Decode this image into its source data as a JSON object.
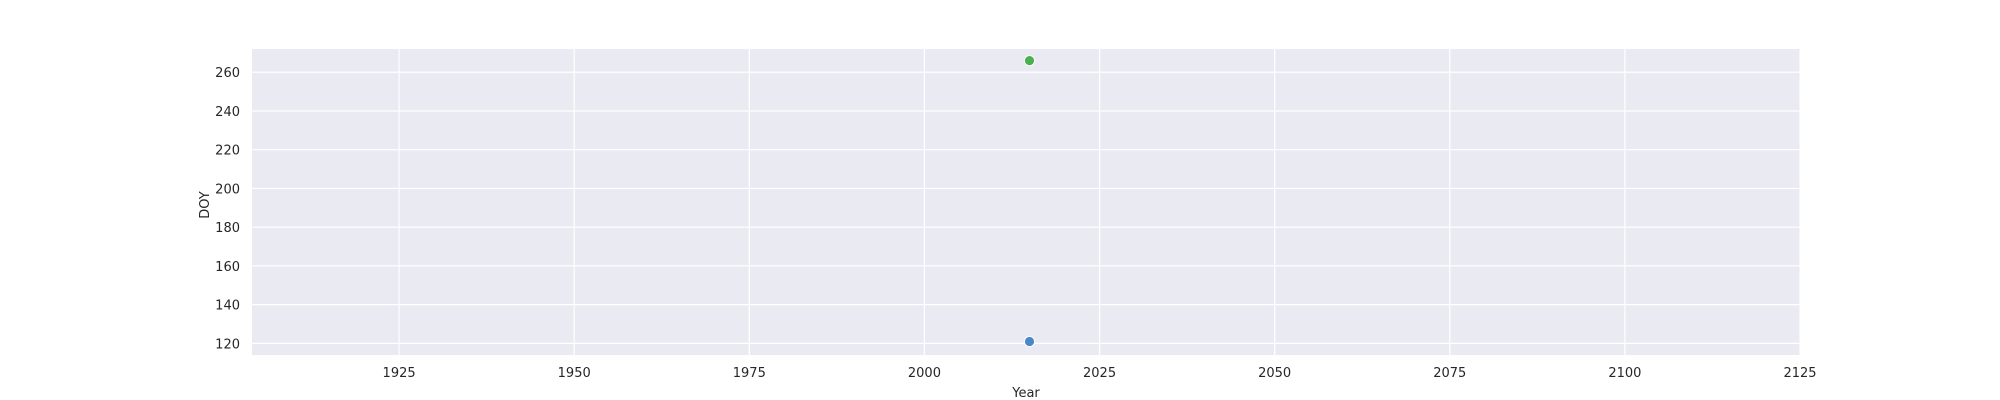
{
  "chart_data": {
    "type": "scatter",
    "xlabel": "Year",
    "ylabel": "DOY",
    "xlim": [
      1904,
      2125
    ],
    "ylim": [
      114,
      272
    ],
    "x_ticks": [
      1925,
      1950,
      1975,
      2000,
      2025,
      2050,
      2075,
      2100,
      2125
    ],
    "y_ticks": [
      120,
      140,
      160,
      180,
      200,
      220,
      240,
      260
    ],
    "grid": true,
    "background": "#eaeaf2",
    "series": [
      {
        "x": [
          2015
        ],
        "y": [
          121
        ],
        "color": "#4a86c8"
      },
      {
        "x": [
          2015
        ],
        "y": [
          266
        ],
        "color": "#4caf50"
      }
    ]
  }
}
